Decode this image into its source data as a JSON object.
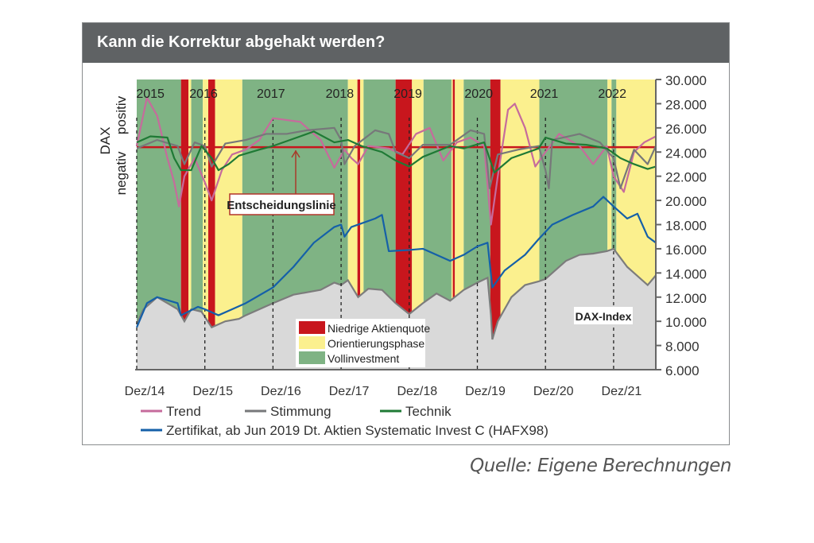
{
  "title": "Kann die Korrektur abgehakt werden?",
  "source": "Quelle: Eigene Berechnungen",
  "chart_data": {
    "type": "line",
    "title": "Kann die Korrektur abgehakt werden?",
    "ylabel_top": "DAX",
    "ylabel_neg": "negativ",
    "ylabel_pos": "positiv",
    "ylim": [
      6000,
      30000
    ],
    "xlim": [
      0,
      7.62
    ],
    "y_ticks": [
      6000,
      8000,
      10000,
      12000,
      14000,
      16000,
      18000,
      20000,
      22000,
      24000,
      26000,
      28000,
      30000
    ],
    "y_tick_labels": [
      "6.000",
      "8.000",
      "10.000",
      "12.000",
      "14.000",
      "16.000",
      "18.000",
      "20.000",
      "22.000",
      "24.000",
      "26.000",
      "28.000",
      "30.000"
    ],
    "x_ticks": [
      0,
      1,
      2,
      3,
      4,
      5,
      6,
      7
    ],
    "x_tick_labels": [
      "Dez/14",
      "Dez/15",
      "Dez/16",
      "Dez/17",
      "Dez/18",
      "Dez/19",
      "Dez/20",
      "Dez/21"
    ],
    "year_labels": [
      {
        "t": 0.2,
        "label": "2015"
      },
      {
        "t": 0.98,
        "label": "2016"
      },
      {
        "t": 1.97,
        "label": "2017"
      },
      {
        "t": 2.98,
        "label": "2018"
      },
      {
        "t": 3.98,
        "label": "2019"
      },
      {
        "t": 5.02,
        "label": "2020"
      },
      {
        "t": 5.98,
        "label": "2021"
      },
      {
        "t": 6.98,
        "label": "2022"
      }
    ],
    "grid": "dashed verticals at year ends",
    "decision_line": {
      "value": 24400,
      "label": "Entscheidungslinie",
      "color": "#c8161d"
    },
    "phase_colors": {
      "red": "#c8161d",
      "yellow": "#fbf08e",
      "green": "#7fb384"
    },
    "phases": [
      {
        "from": 0,
        "to": 0.65,
        "phase": "green"
      },
      {
        "from": 0.65,
        "to": 0.76,
        "phase": "red"
      },
      {
        "from": 0.76,
        "to": 0.8,
        "phase": "yellow"
      },
      {
        "from": 0.8,
        "to": 0.97,
        "phase": "green"
      },
      {
        "from": 0.97,
        "to": 1.05,
        "phase": "yellow"
      },
      {
        "from": 1.05,
        "to": 1.15,
        "phase": "red"
      },
      {
        "from": 1.15,
        "to": 1.55,
        "phase": "yellow"
      },
      {
        "from": 1.55,
        "to": 3.1,
        "phase": "green"
      },
      {
        "from": 3.1,
        "to": 3.24,
        "phase": "yellow"
      },
      {
        "from": 3.24,
        "to": 3.28,
        "phase": "red"
      },
      {
        "from": 3.28,
        "to": 3.33,
        "phase": "yellow"
      },
      {
        "from": 3.33,
        "to": 3.8,
        "phase": "green"
      },
      {
        "from": 3.8,
        "to": 4.04,
        "phase": "red"
      },
      {
        "from": 4.04,
        "to": 4.21,
        "phase": "yellow"
      },
      {
        "from": 4.21,
        "to": 4.62,
        "phase": "green"
      },
      {
        "from": 4.62,
        "to": 4.64,
        "phase": "yellow"
      },
      {
        "from": 4.64,
        "to": 4.67,
        "phase": "red"
      },
      {
        "from": 4.67,
        "to": 4.8,
        "phase": "yellow"
      },
      {
        "from": 4.8,
        "to": 5.19,
        "phase": "green"
      },
      {
        "from": 5.19,
        "to": 5.34,
        "phase": "red"
      },
      {
        "from": 5.34,
        "to": 5.91,
        "phase": "yellow"
      },
      {
        "from": 5.91,
        "to": 6.91,
        "phase": "green"
      },
      {
        "from": 6.91,
        "to": 6.97,
        "phase": "yellow"
      },
      {
        "from": 6.97,
        "to": 7.04,
        "phase": "green"
      },
      {
        "from": 7.04,
        "to": 7.62,
        "phase": "yellow"
      }
    ],
    "phase_legend": [
      {
        "phase": "red",
        "label": "Niedrige Aktienquote"
      },
      {
        "phase": "yellow",
        "label": "Orientierungsphase"
      },
      {
        "phase": "green",
        "label": "Vollinvestment"
      }
    ],
    "dax_area": {
      "label": "DAX-Index",
      "color": "#d9d9d9",
      "outline": "#7c7c7c",
      "x": [
        0,
        0.1,
        0.3,
        0.45,
        0.6,
        0.7,
        0.8,
        0.95,
        1.1,
        1.3,
        1.5,
        1.6,
        1.8,
        2.0,
        2.3,
        2.5,
        2.7,
        2.9,
        3.0,
        3.1,
        3.25,
        3.4,
        3.6,
        3.8,
        4.0,
        4.2,
        4.4,
        4.6,
        4.8,
        5.0,
        5.15,
        5.2,
        5.22,
        5.3,
        5.5,
        5.7,
        5.9,
        6.0,
        6.3,
        6.5,
        6.7,
        6.9,
        7.0,
        7.2,
        7.3,
        7.5,
        7.62
      ],
      "y": [
        9800,
        11000,
        12000,
        11500,
        11000,
        10000,
        11000,
        10800,
        9500,
        10000,
        10200,
        10500,
        11000,
        11500,
        12200,
        12400,
        12600,
        13200,
        13000,
        13400,
        12000,
        12700,
        12600,
        11500,
        10600,
        11500,
        12300,
        11700,
        12600,
        13200,
        13600,
        10500,
        8500,
        10000,
        12000,
        13000,
        13300,
        13500,
        15000,
        15500,
        15600,
        15800,
        16000,
        14500,
        14000,
        13000,
        13800
      ]
    },
    "series": [
      {
        "name": "Trend",
        "color": "#c66b9c",
        "x": [
          0,
          0.15,
          0.3,
          0.45,
          0.55,
          0.62,
          0.7,
          0.85,
          1.0,
          1.1,
          1.25,
          1.4,
          1.6,
          1.8,
          2.0,
          2.4,
          2.7,
          2.9,
          3.05,
          3.15,
          3.25,
          3.4,
          3.7,
          3.9,
          4.1,
          4.3,
          4.5,
          4.7,
          4.9,
          5.1,
          5.2,
          5.3,
          5.45,
          5.55,
          5.7,
          5.85,
          6.0,
          6.2,
          6.5,
          6.7,
          6.9,
          7.0,
          7.15,
          7.3,
          7.45,
          7.62
        ],
        "y": [
          24500,
          28500,
          27000,
          23500,
          21500,
          19500,
          22000,
          23500,
          21500,
          20000,
          22500,
          23800,
          24200,
          25000,
          26800,
          26500,
          25000,
          22700,
          24200,
          23500,
          23000,
          24500,
          24300,
          23800,
          25500,
          26000,
          23300,
          24800,
          25200,
          24500,
          18000,
          22000,
          27500,
          28000,
          26000,
          22800,
          24000,
          25500,
          24500,
          23000,
          24500,
          22000,
          20700,
          24000,
          24800,
          25300
        ]
      },
      {
        "name": "Stimmung",
        "color": "#77787a",
        "x": [
          0,
          0.3,
          0.6,
          0.7,
          0.85,
          1.0,
          1.1,
          1.3,
          1.6,
          1.9,
          2.2,
          2.5,
          2.9,
          3.0,
          3.05,
          3.2,
          3.5,
          3.7,
          3.8,
          4.0,
          4.2,
          4.6,
          4.9,
          5.1,
          5.18,
          5.3,
          5.6,
          5.9,
          6.0,
          6.05,
          6.1,
          6.5,
          6.8,
          7.0,
          7.1,
          7.3,
          7.5,
          7.62
        ],
        "y": [
          24300,
          25000,
          24500,
          23000,
          24800,
          24500,
          22800,
          24700,
          25000,
          25500,
          25500,
          25800,
          26000,
          25000,
          23000,
          24500,
          25800,
          25500,
          24000,
          23500,
          24600,
          24600,
          25800,
          25500,
          21000,
          23800,
          24200,
          24500,
          22500,
          21000,
          25000,
          25500,
          24800,
          23500,
          21000,
          24200,
          23000,
          24500
        ]
      },
      {
        "name": "Technik",
        "color": "#1f7a35",
        "x": [
          0,
          0.2,
          0.45,
          0.55,
          0.65,
          0.8,
          0.95,
          1.1,
          1.2,
          1.35,
          1.5,
          1.8,
          2.0,
          2.4,
          2.6,
          2.9,
          3.1,
          3.3,
          3.6,
          3.8,
          4.0,
          4.2,
          4.6,
          4.8,
          5.1,
          5.25,
          5.5,
          5.9,
          6.0,
          6.3,
          6.6,
          6.9,
          7.1,
          7.3,
          7.5,
          7.62
        ],
        "y": [
          24800,
          25300,
          25200,
          23500,
          22500,
          22500,
          24500,
          23500,
          22500,
          23000,
          23700,
          24200,
          24500,
          25300,
          25700,
          24800,
          25000,
          24500,
          24000,
          23300,
          22800,
          23600,
          24500,
          24300,
          24800,
          22300,
          23500,
          24300,
          25200,
          24700,
          24600,
          24300,
          23500,
          23000,
          22600,
          22800
        ]
      },
      {
        "name": "Zertifikat, ab Jun 2019 Dt. Aktien Systematic Invest C (HAFX98)",
        "color": "#1560a8",
        "x": [
          0,
          0.15,
          0.3,
          0.6,
          0.65,
          0.9,
          1.0,
          1.2,
          1.4,
          1.6,
          2.0,
          2.3,
          2.6,
          2.9,
          3.0,
          3.05,
          3.15,
          3.5,
          3.6,
          3.7,
          4.0,
          4.2,
          4.4,
          4.6,
          4.8,
          5.0,
          5.15,
          5.22,
          5.4,
          5.7,
          5.9,
          6.1,
          6.4,
          6.7,
          6.85,
          7.0,
          7.2,
          7.35,
          7.5,
          7.62
        ],
        "y": [
          9500,
          11500,
          12000,
          11500,
          10500,
          11200,
          11000,
          10500,
          11000,
          11500,
          12800,
          14500,
          16500,
          17800,
          18000,
          17000,
          17800,
          18500,
          18800,
          15800,
          15900,
          16000,
          15500,
          15000,
          15500,
          16200,
          16500,
          12800,
          14200,
          15500,
          16800,
          18000,
          18800,
          19500,
          20300,
          19500,
          18500,
          18900,
          17000,
          16500
        ]
      }
    ],
    "legend_rows": [
      [
        "Trend",
        "Stimmung",
        "Technik"
      ],
      [
        "Zertifikat, ab Jun 2019 Dt. Aktien Systematic Invest C (HAFX98)"
      ]
    ]
  }
}
